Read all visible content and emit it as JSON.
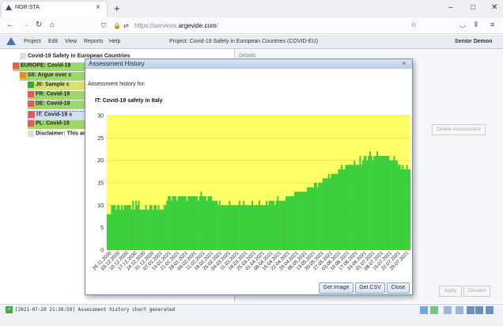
{
  "browser": {
    "tab_title": "NOR-STA",
    "tab_close": "×",
    "new_tab": "+",
    "url_prefix": "https://services.",
    "url_domain": "argevide.com",
    "url_suffix": "/",
    "window_controls": [
      "–",
      "□",
      "✕"
    ]
  },
  "app": {
    "menu": [
      "Project",
      "Edit",
      "View",
      "Reports",
      "Help"
    ],
    "project_title": "Project: Covid-19 Safety in European Countries (COVID-EU)",
    "user": "Senior Demon",
    "details_label": "Details",
    "delete_button": "Delete Assessment",
    "apply_button": "Apply",
    "discard_button": "Discard"
  },
  "tree": [
    {
      "label": "Covid-19 Safety in European Countries",
      "color": "#ddd"
    },
    {
      "label": "EUROPE: Covid-19",
      "color": "#9fd86a"
    },
    {
      "label": "S0: Argue over c",
      "color": "#9fd86a"
    },
    {
      "label": "J0: Sample c",
      "color": "#d8e46a"
    },
    {
      "label": "FR: Covid-19",
      "color": "#9fd86a"
    },
    {
      "label": "DE: Covid-19",
      "color": "#9fd86a"
    },
    {
      "label": "IT: Covid-19 s",
      "color": "#cfe0f5"
    },
    {
      "label": "PL: Covid-19",
      "color": "#9fd86a"
    },
    {
      "label": "Disclaimer: This ar",
      "color": "#ddd"
    }
  ],
  "status": {
    "check": "✓",
    "text": "[2021-07-29 21:38:59] Assessment history chart generated"
  },
  "dialog": {
    "title": "Assessment History",
    "close": "×",
    "subtitle": "Assessment history for:",
    "item": "IT: Covid-19 safety in Italy",
    "buttons": [
      "Get Image",
      "Get CSV",
      "Close"
    ]
  },
  "chart_data": {
    "type": "bar",
    "title": "",
    "xlabel": "",
    "ylabel": "",
    "ylim": [
      0,
      30
    ],
    "yticks": [
      0,
      5,
      10,
      15,
      20,
      25,
      30
    ],
    "grid": true,
    "colors": {
      "bar": "#3ccf3c",
      "background": "#ffff66"
    },
    "x_tick_labels": [
      "26.11.2020",
      "03.12.2020",
      "10.12.2020",
      "17.12.2020",
      "24.12.2020",
      "31.12.2020",
      "07.01.2021",
      "14.01.2021",
      "21.01.2021",
      "28.01.2021",
      "04.02.2021",
      "11.02.2021",
      "18.02.2021",
      "25.02.2021",
      "04.03.2021",
      "11.03.2021",
      "18.03.2021",
      "25.03.2021",
      "01.04.2021",
      "08.04.2021",
      "15.04.2021",
      "22.04.2021",
      "29.04.2021",
      "06.05.2021",
      "13.05.2021",
      "20.05.2021",
      "27.05.2021",
      "03.06.2021",
      "10.06.2021",
      "17.06.2021",
      "24.06.2021",
      "01.07.2021",
      "08.07.2021",
      "15.07.2021",
      "22.07.2021",
      "29.07.2021"
    ],
    "values": [
      8,
      8,
      8,
      10,
      10,
      10,
      9,
      10,
      10,
      9,
      10,
      9,
      10,
      10,
      10,
      10,
      10,
      9,
      11,
      9,
      11,
      10,
      11,
      9,
      9,
      9,
      9,
      10,
      9,
      9,
      10,
      10,
      9,
      10,
      10,
      9,
      10,
      9,
      9,
      9,
      10,
      10,
      11,
      12,
      12,
      11,
      12,
      12,
      12,
      11,
      12,
      12,
      12,
      12,
      12,
      12,
      11,
      12,
      12,
      12,
      12,
      12,
      12,
      12,
      11,
      12,
      13,
      12,
      12,
      12,
      11,
      12,
      12,
      12,
      11,
      11,
      11,
      11,
      10,
      11,
      10,
      10,
      10,
      10,
      10,
      10,
      11,
      10,
      10,
      10,
      10,
      10,
      10,
      11,
      10,
      10,
      11,
      10,
      10,
      10,
      10,
      10,
      11,
      10,
      10,
      10,
      10,
      11,
      10,
      10,
      10,
      10,
      11,
      10,
      11,
      11,
      11,
      11,
      10,
      11,
      12,
      11,
      11,
      11,
      11,
      11,
      12,
      12,
      12,
      12,
      12,
      12,
      13,
      13,
      13,
      13,
      13,
      13,
      13,
      13,
      13,
      14,
      14,
      14,
      14,
      14,
      15,
      15,
      14,
      15,
      15,
      15,
      16,
      16,
      16,
      16,
      17,
      16,
      17,
      17,
      17,
      17,
      17,
      18,
      18,
      19,
      18,
      18,
      19,
      19,
      19,
      19,
      19,
      19,
      20,
      19,
      19,
      19,
      21,
      19,
      20,
      21,
      21,
      20,
      21,
      22,
      21,
      20,
      21,
      21,
      22,
      21,
      21,
      21,
      21,
      21,
      21,
      21,
      21,
      20,
      20,
      20,
      21,
      20,
      20,
      19,
      19,
      18,
      19,
      18,
      18,
      19,
      18,
      18
    ]
  }
}
